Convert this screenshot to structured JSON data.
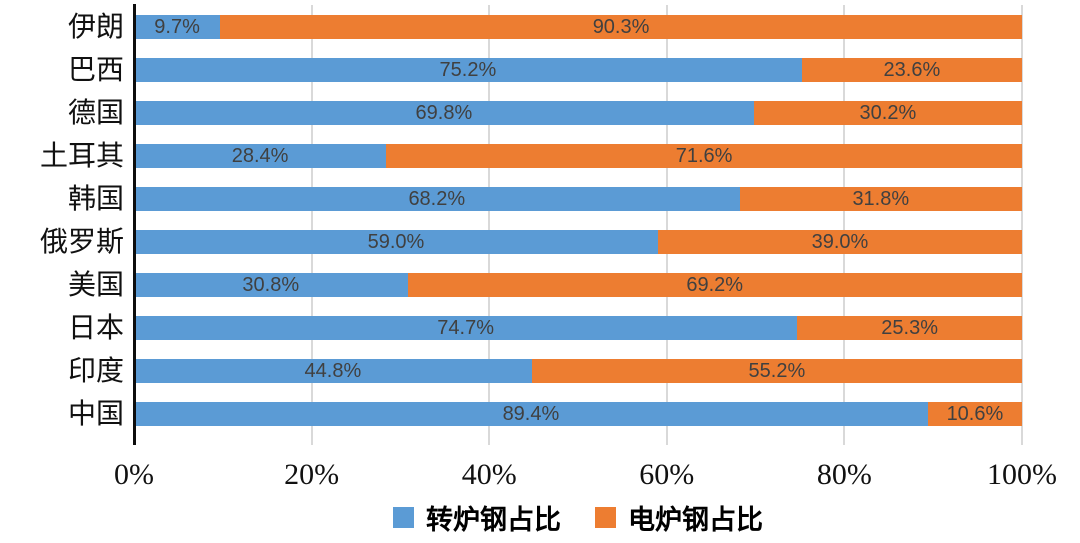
{
  "chart_data": {
    "type": "bar",
    "orientation": "horizontal-stacked-100",
    "title": "",
    "xlabel": "",
    "ylabel": "",
    "xlim": [
      0,
      100
    ],
    "grid": "vertical",
    "legend_position": "bottom-center",
    "categories": [
      "伊朗",
      "巴西",
      "德国",
      "土耳其",
      "韩国",
      "俄罗斯",
      "美国",
      "日本",
      "印度",
      "中国"
    ],
    "series": [
      {
        "name": "转炉钢占比",
        "color": "#5B9BD5",
        "values": [
          9.7,
          75.2,
          69.8,
          28.4,
          68.2,
          59.0,
          30.8,
          74.7,
          44.8,
          89.4
        ],
        "labels": [
          "9.7%",
          "75.2%",
          "69.8%",
          "28.4%",
          "68.2%",
          "59.0%",
          "30.8%",
          "74.7%",
          "44.8%",
          "89.4%"
        ]
      },
      {
        "name": "电炉钢占比",
        "color": "#ED7D31",
        "values": [
          90.3,
          23.6,
          30.2,
          71.6,
          31.8,
          39.0,
          69.2,
          25.3,
          55.2,
          10.6
        ],
        "labels": [
          "90.3%",
          "23.6%",
          "30.2%",
          "71.6%",
          "31.8%",
          "39.0%",
          "69.2%",
          "25.3%",
          "55.2%",
          "10.6%"
        ]
      }
    ],
    "x_ticks": [
      {
        "label": "0%",
        "value": 0
      },
      {
        "label": "20%",
        "value": 20
      },
      {
        "label": "40%",
        "value": 40
      },
      {
        "label": "60%",
        "value": 60
      },
      {
        "label": "80%",
        "value": 80
      },
      {
        "label": "100%",
        "value": 100
      }
    ]
  },
  "style": {
    "data_label_color": "#404040",
    "gridline_color": "#d9d9d9",
    "axis_line_color": "#0d0d0d",
    "background_color": "#ffffff"
  }
}
